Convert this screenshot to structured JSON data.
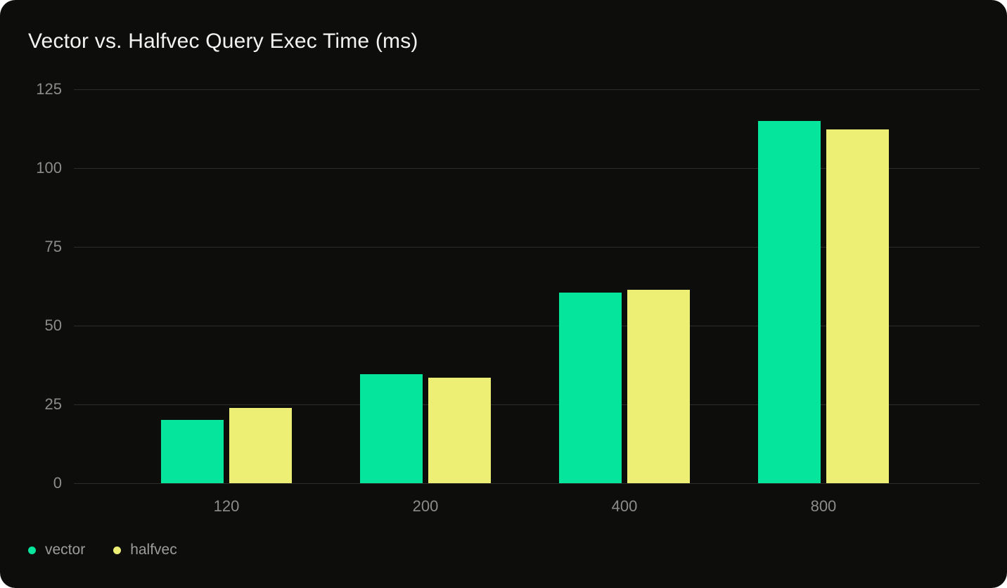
{
  "title": "Vector vs. Halfvec Query Exec Time (ms)",
  "colors": {
    "page_background": "#ffffff",
    "card_background": "#0d0e0b",
    "gridline": "#2c2c29",
    "axis_text": "#8c8c8c",
    "legend_text": "#9c9c9c",
    "title_text": "#f2f2f2",
    "vector_green": "#05e59c",
    "halfvec_yellow": "#edef74"
  },
  "chart_data": {
    "type": "bar",
    "title": "Vector vs. Halfvec Query Exec Time (ms)",
    "categories": [
      "120",
      "200",
      "400",
      "800"
    ],
    "series": [
      {
        "name": "vector",
        "color": "#05e59c",
        "values": [
          20.2,
          34.5,
          60.4,
          114.9
        ]
      },
      {
        "name": "halfvec",
        "color": "#edef74",
        "values": [
          23.9,
          33.4,
          61.3,
          112.3
        ]
      }
    ],
    "xlabel": "",
    "ylabel": "",
    "ylim": [
      0,
      125
    ],
    "yticks": [
      0,
      25,
      50,
      75,
      100,
      125
    ],
    "grid": true,
    "legend_position": "bottom-left"
  }
}
